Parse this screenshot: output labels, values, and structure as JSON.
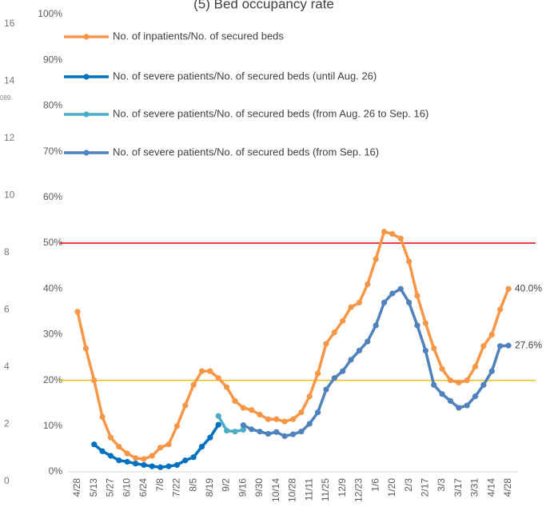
{
  "chart_data": {
    "type": "line",
    "title": "(5) Bed occupancy rate",
    "categories": [
      "4/28",
      null,
      "5/13",
      null,
      "5/27",
      null,
      "6/10",
      null,
      "6/24",
      null,
      "7/8",
      null,
      "7/22",
      null,
      "8/5",
      null,
      "8/19",
      null,
      "9/2",
      null,
      "9/16",
      null,
      "9/30",
      null,
      "10/14",
      null,
      "10/28",
      null,
      "11/11",
      null,
      "11/25",
      null,
      "12/9",
      null,
      "12/23",
      null,
      "1/6",
      null,
      "1/20",
      null,
      "2/3",
      null,
      "2/17",
      null,
      "3/3",
      null,
      "3/17",
      null,
      "3/31",
      null,
      "4/14",
      null,
      "4/28"
    ],
    "series": [
      {
        "name": "No. of inpatients/No. of secured beds",
        "color": "#f79646",
        "values": [
          35,
          27,
          20,
          12,
          7.5,
          5.5,
          4,
          3,
          2.8,
          3.5,
          5.3,
          6,
          10,
          14.5,
          19,
          22,
          22,
          20.5,
          18.5,
          15.5,
          14,
          13.5,
          12.5,
          11.5,
          11.5,
          11,
          11.5,
          13,
          16.5,
          21.5,
          28,
          30.5,
          33,
          36,
          37,
          41,
          46.5,
          52.5,
          52,
          51,
          46,
          38.5,
          32.5,
          27,
          22.5,
          20,
          19.5,
          20,
          23,
          27.5,
          30,
          35.5,
          40.0
        ],
        "value_labels": [
          null,
          null,
          null,
          null,
          null,
          null,
          null,
          null,
          null,
          null,
          null,
          null,
          null,
          null,
          null,
          null,
          null,
          null,
          null,
          null,
          null,
          null,
          null,
          null,
          null,
          null,
          null,
          null,
          null,
          null,
          null,
          null,
          null,
          null,
          null,
          null,
          null,
          null,
          null,
          null,
          null,
          null,
          null,
          null,
          null,
          null,
          null,
          null,
          null,
          null,
          null,
          null,
          "40.0%"
        ]
      },
      {
        "name": "No. of severe patients/No. of secured beds (until Aug. 26)",
        "color": "#0070c0",
        "values": [
          null,
          null,
          6,
          4.5,
          3.5,
          2.5,
          2.2,
          1.8,
          1.5,
          1.2,
          1.0,
          1.2,
          1.5,
          2.5,
          3.2,
          5.5,
          7.5,
          10.3,
          null,
          null,
          null,
          null,
          null,
          null,
          null,
          null,
          null,
          null,
          null,
          null,
          null,
          null,
          null,
          null,
          null,
          null,
          null,
          null,
          null,
          null,
          null,
          null,
          null,
          null,
          null,
          null,
          null,
          null,
          null,
          null,
          null,
          null,
          null
        ]
      },
      {
        "name": "No. of severe patients/No. of secured beds (from Aug. 26 to Sep. 16)",
        "color": "#4bacc6",
        "values": [
          null,
          null,
          null,
          null,
          null,
          null,
          null,
          null,
          null,
          null,
          null,
          null,
          null,
          null,
          null,
          null,
          null,
          12.2,
          9,
          8.8,
          9.2,
          null,
          null,
          null,
          null,
          null,
          null,
          null,
          null,
          null,
          null,
          null,
          null,
          null,
          null,
          null,
          null,
          null,
          null,
          null,
          null,
          null,
          null,
          null,
          null,
          null,
          null,
          null,
          null,
          null,
          null,
          null,
          null
        ]
      },
      {
        "name": "No. of severe patients/No. of secured beds (from Sep. 16)",
        "color": "#4f81bd",
        "values": [
          null,
          null,
          null,
          null,
          null,
          null,
          null,
          null,
          null,
          null,
          null,
          null,
          null,
          null,
          null,
          null,
          null,
          null,
          null,
          null,
          10.2,
          9.3,
          8.8,
          8.3,
          8.7,
          7.8,
          8.2,
          8.8,
          10.5,
          13,
          18,
          20.5,
          22,
          24.5,
          26.5,
          28.5,
          32,
          37,
          39,
          40,
          37,
          32,
          26.5,
          19,
          17,
          15.5,
          14,
          14.5,
          16.5,
          19,
          22,
          27.5,
          27.6
        ],
        "value_labels": [
          null,
          null,
          null,
          null,
          null,
          null,
          null,
          null,
          null,
          null,
          null,
          null,
          null,
          null,
          null,
          null,
          null,
          null,
          null,
          null,
          null,
          null,
          null,
          null,
          null,
          null,
          null,
          null,
          null,
          null,
          null,
          null,
          null,
          null,
          null,
          null,
          null,
          null,
          null,
          null,
          null,
          null,
          null,
          null,
          null,
          null,
          null,
          null,
          null,
          null,
          null,
          null,
          "27.6%"
        ]
      }
    ],
    "ylim": [
      0,
      100
    ],
    "yticks": [
      {
        "value": 0,
        "label": "0%"
      },
      {
        "value": 10,
        "label": "10%"
      },
      {
        "value": 20,
        "label": "20%"
      },
      {
        "value": 30,
        "label": "30%"
      },
      {
        "value": 40,
        "label": "40%"
      },
      {
        "value": 50,
        "label": "50%"
      },
      {
        "value": 60,
        "label": "60%"
      },
      {
        "value": 70,
        "label": "70%"
      },
      {
        "value": 80,
        "label": "80%"
      },
      {
        "value": 90,
        "label": "90%"
      },
      {
        "value": 100,
        "label": "100%"
      }
    ],
    "y2lim": [
      0,
      16
    ],
    "y2ticks": [
      0,
      2,
      4,
      6,
      8,
      10,
      12,
      14,
      16
    ],
    "annotations": [
      "089"
    ],
    "reference_lines": [
      {
        "value": 50,
        "color": "#e00000"
      },
      {
        "value": 20,
        "color": "#f0c000"
      }
    ],
    "legend": "top-left"
  }
}
